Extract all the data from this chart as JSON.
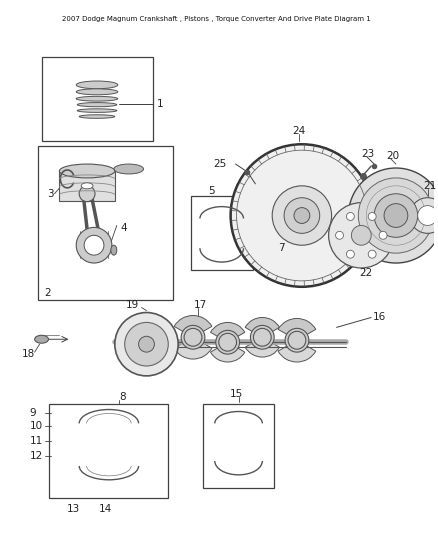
{
  "title": "2007 Dodge Magnum Crankshaft , Pistons , Torque Converter And Drive Plate Diagram 1",
  "bg_color": "#ffffff",
  "line_color": "#404040",
  "fig_width": 4.38,
  "fig_height": 5.33,
  "dpi": 100
}
